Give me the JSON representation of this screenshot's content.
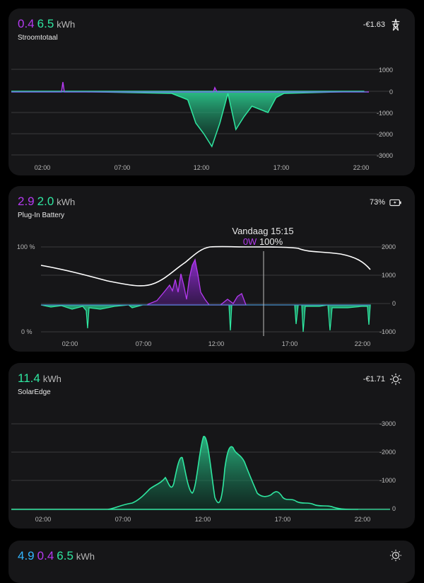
{
  "colors": {
    "purple": "#b43af0",
    "green": "#2fe6a0",
    "blue": "#33b5ff",
    "white": "#ffffff"
  },
  "cards": [
    {
      "value1": "0.4",
      "value2": "6.5",
      "unit": "kWh",
      "name": "Stroomtotaal",
      "right_value": "-€1.63",
      "icon": "power-pylon-icon",
      "y_right": [
        "1000",
        "0",
        "-1000",
        "-2000",
        "-3000"
      ],
      "x_ticks": [
        "02:00",
        "07:00",
        "12:00",
        "17:00",
        "22:00"
      ]
    },
    {
      "value1": "2.9",
      "value2": "2.0",
      "unit": "kWh",
      "name": "Plug-In Battery",
      "right_value": "73%",
      "icon": "battery-charging-icon",
      "y_left": [
        "100 %",
        "0 %"
      ],
      "y_right": [
        "2000",
        "1000",
        "0",
        "-1000"
      ],
      "x_ticks": [
        "02:00",
        "07:00",
        "12:00",
        "17:00",
        "22:00"
      ],
      "tooltip": {
        "time": "Vandaag 15:15",
        "power": "0W",
        "soc": "100%"
      }
    },
    {
      "value1": "11.4",
      "unit": "kWh",
      "name": "SolarEdge",
      "right_value": "-€1.71",
      "icon": "sun-icon",
      "y_right": [
        "-3000",
        "-2000",
        "-1000",
        "0"
      ],
      "x_ticks": [
        "02:00",
        "07:00",
        "12:00",
        "17:00",
        "22:00"
      ]
    },
    {
      "value0": "4.9",
      "value1": "0.4",
      "value2": "6.5",
      "unit": "kWh",
      "icon": "sun-clock-icon"
    }
  ],
  "chart_data": [
    {
      "type": "area",
      "title": "Stroomtotaal",
      "x_range": [
        "00:00",
        "24:00"
      ],
      "ylim": [
        -3000,
        1000
      ],
      "series": [
        {
          "values_at_hours": [
            [
              0,
              0
            ],
            [
              3,
              300
            ],
            [
              10,
              -100
            ],
            [
              11,
              -400
            ],
            [
              11.5,
              -1500
            ],
            [
              12,
              -2000
            ],
            [
              12.5,
              -2600
            ],
            [
              13,
              -1500
            ],
            [
              13.5,
              -100
            ],
            [
              14,
              -1800
            ],
            [
              14.5,
              -1200
            ],
            [
              15,
              -700
            ],
            [
              16,
              -1000
            ],
            [
              16.5,
              -300
            ],
            [
              17,
              -100
            ],
            [
              22,
              0
            ]
          ]
        }
      ]
    },
    {
      "type": "area",
      "title": "Plug-In Battery",
      "x_range": [
        "00:00",
        "24:00"
      ],
      "ylim": [
        -1000,
        2000
      ],
      "series": [
        {
          "values_at_hours": [
            [
              0,
              -50
            ],
            [
              3,
              -80
            ],
            [
              6,
              -30
            ],
            [
              7,
              50
            ],
            [
              8,
              200
            ],
            [
              9,
              800
            ],
            [
              10,
              1500
            ],
            [
              11,
              300
            ],
            [
              12,
              100
            ],
            [
              13,
              0
            ],
            [
              17,
              -700
            ],
            [
              20,
              -200
            ],
            [
              22,
              -50
            ]
          ]
        }
      ]
    },
    {
      "type": "area",
      "title": "SolarEdge",
      "x_range": [
        "00:00",
        "24:00"
      ],
      "ylim": [
        0,
        3000
      ],
      "series": [
        {
          "values_at_hours": [
            [
              0,
              0
            ],
            [
              6,
              0
            ],
            [
              7,
              100
            ],
            [
              8,
              400
            ],
            [
              9,
              800
            ],
            [
              10,
              1700
            ],
            [
              10.5,
              1000
            ],
            [
              11,
              600
            ],
            [
              12,
              2600
            ],
            [
              12.5,
              600
            ],
            [
              13,
              2300
            ],
            [
              14,
              1800
            ],
            [
              15,
              600
            ],
            [
              16,
              700
            ],
            [
              17,
              350
            ],
            [
              18,
              200
            ],
            [
              19,
              150
            ],
            [
              20,
              50
            ],
            [
              21,
              0
            ]
          ]
        }
      ]
    }
  ]
}
